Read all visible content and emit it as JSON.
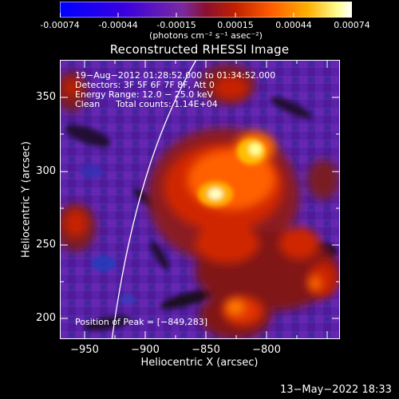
{
  "colorbar": {
    "tick_labels": [
      "-0.00074",
      "-0.00044",
      "-0.00015",
      "0.00015",
      "0.00044",
      "0.00074"
    ],
    "units": "(photons cm⁻² s⁻¹ asec⁻²)"
  },
  "plot": {
    "title": "Reconstructed RHESSI Image",
    "xlabel": "Heliocentric X (arcsec)",
    "ylabel": "Heliocentric Y (arcsec)",
    "x_ticks": [
      "−950",
      "−900",
      "−850",
      "−800"
    ],
    "y_ticks": [
      "350",
      "300",
      "250",
      "200"
    ],
    "xlim": [
      -960,
      -825
    ],
    "ylim": [
      185,
      375
    ]
  },
  "info": {
    "time_range": "19−Aug−2012 01:28:52.000 to 01:34:52.000",
    "detectors": "Detectors: 3F 5F 6F 7F 8F, Att 0",
    "energy": "Energy Range: 12.0 − 25.0 keV",
    "method": "Clean",
    "counts": "Total counts: 1.14E+04",
    "peak": "Position of Peak = [−849,283]"
  },
  "footer": {
    "timestamp": "13−May−2022 18:33"
  },
  "colors": {
    "background": "#000000",
    "colormap": [
      "#0000ff",
      "#5a00c8",
      "#7a3aa8",
      "#b01e00",
      "#ff5000",
      "#ffa000",
      "#ffff90",
      "#ffffff"
    ]
  }
}
